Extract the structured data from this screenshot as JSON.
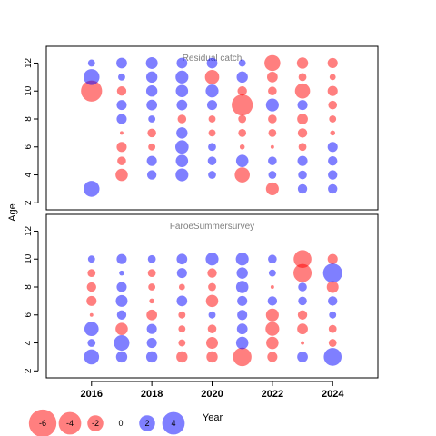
{
  "colors": {
    "negative": "#ff0000",
    "positive": "#0000ff",
    "bubble_opacity": 0.5
  },
  "chart_data": {
    "type": "scatter",
    "subtype": "bubble",
    "xlabel": "Year",
    "ylabel": "Age",
    "xlim": [
      2014.5,
      2025.5
    ],
    "x_ticks": [
      2016,
      2018,
      2020,
      2022,
      2024
    ],
    "y_ticks": [
      2,
      4,
      6,
      8,
      10,
      12
    ],
    "years": [
      2016,
      2017,
      2018,
      2019,
      2020,
      2021,
      2022,
      2023,
      2024
    ],
    "legend": {
      "values": [
        -6,
        -4,
        -2,
        0,
        2,
        4
      ],
      "labels": [
        "-6",
        "-4",
        "-2",
        "0",
        "2",
        "4"
      ],
      "placement": "bottom-left"
    },
    "panels": [
      {
        "title": "Residual catch",
        "ylim": [
          1.5,
          13.2
        ],
        "ages": [
          3,
          4,
          5,
          6,
          7,
          8,
          9,
          10,
          11,
          12
        ],
        "values": [
          [
            2.0,
            null,
            null,
            null,
            null,
            null,
            null,
            -3.5,
            2.0,
            0.4
          ],
          [
            null,
            -1.2,
            -0.6,
            -0.8,
            -0.1,
            0.8,
            0.8,
            -0.7,
            0.4,
            0.9
          ],
          [
            null,
            0.7,
            0.8,
            -0.4,
            -0.6,
            0.4,
            0.9,
            1.0,
            1.0,
            1.1
          ],
          [
            null,
            1.3,
            1.2,
            1.4,
            1.0,
            -0.6,
            0.9,
            1.2,
            1.3,
            0.9
          ],
          [
            null,
            0.5,
            0.6,
            0.5,
            -0.4,
            -0.4,
            0.8,
            1.3,
            -1.6,
            0.9
          ],
          [
            null,
            -1.8,
            1.2,
            -0.2,
            -0.5,
            -0.5,
            -3.5,
            -0.7,
            1.0,
            0.4
          ],
          [
            -1.3,
            0.5,
            0.6,
            -0.1,
            -0.5,
            -0.6,
            1.3,
            -0.6,
            -0.9,
            -2.0
          ],
          [
            0.7,
            0.6,
            0.8,
            -0.5,
            -0.7,
            -0.9,
            0.8,
            -1.8,
            -0.5,
            -1.0
          ],
          [
            0.7,
            0.7,
            0.7,
            0.8,
            -0.2,
            -0.4,
            -0.6,
            -0.8,
            -0.3,
            -0.8
          ]
        ]
      },
      {
        "title": "FaroeSummersurvey",
        "ylim": [
          1.5,
          13.2
        ],
        "ages": [
          3,
          4,
          5,
          6,
          7,
          8,
          9,
          10
        ],
        "values": [
          [
            1.8,
            0.5,
            1.6,
            -0.1,
            -0.8,
            -0.7,
            -0.5,
            0.4
          ],
          [
            1.0,
            1.9,
            -1.2,
            0.7,
            1.1,
            0.8,
            0.2,
            0.8
          ],
          [
            1.0,
            0.8,
            0.8,
            -0.9,
            -0.2,
            -0.4,
            -0.5,
            0.5
          ],
          [
            -1.0,
            -0.4,
            -0.4,
            -0.4,
            0.9,
            -0.3,
            0.8,
            0.9
          ],
          [
            -1.0,
            -1.1,
            -0.6,
            0.4,
            -1.2,
            -0.5,
            -0.7,
            1.3
          ],
          [
            -2.7,
            1.2,
            0.9,
            0.8,
            0.8,
            1.2,
            1.0,
            1.3
          ],
          [
            -0.8,
            -1.2,
            -1.5,
            -1.3,
            0.7,
            -0.1,
            0.4,
            0.6
          ],
          [
            0.9,
            -0.1,
            -0.9,
            -0.7,
            0.6,
            0.6,
            -2.6,
            -2.5
          ],
          [
            2.5,
            -0.5,
            -0.5,
            0.4,
            0.7,
            -1.1,
            2.9,
            -0.8
          ]
        ]
      }
    ]
  }
}
